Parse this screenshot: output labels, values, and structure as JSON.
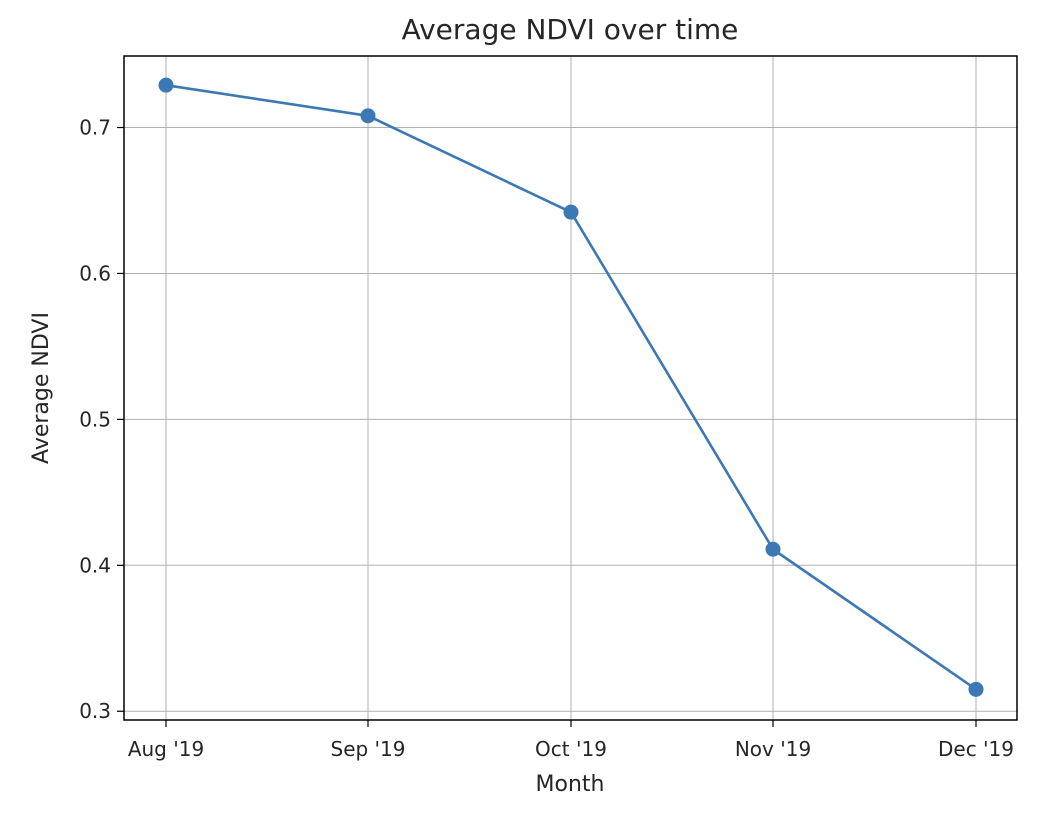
{
  "chart_data": {
    "type": "line",
    "title": "Average NDVI over time",
    "xlabel": "Month",
    "ylabel": "Average NDVI",
    "categories": [
      "Aug '19",
      "Sep '19",
      "Oct '19",
      "Nov '19",
      "Dec '19"
    ],
    "series": [
      {
        "values": [
          0.729,
          0.708,
          0.642,
          0.411,
          0.315
        ]
      }
    ],
    "yticks": [
      0.3,
      0.4,
      0.5,
      0.6,
      0.7
    ],
    "ytick_labels": [
      "0.3",
      "0.4",
      "0.5",
      "0.6",
      "0.7"
    ],
    "ylim": [
      0.294,
      0.749
    ],
    "grid": true,
    "legend": "none",
    "colors": {
      "line": "#3c78b4",
      "marker": "#3c78b4",
      "grid": "#b0b0b0",
      "axes": "#000000",
      "text": "#262626"
    }
  }
}
